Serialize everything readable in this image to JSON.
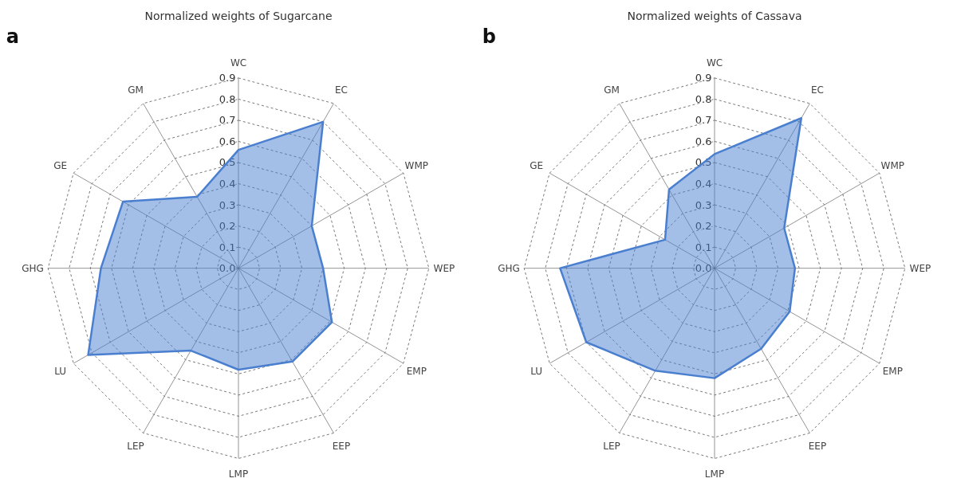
{
  "chart_data": [
    {
      "type": "radar",
      "title": "Normalized weights of Sugarcane",
      "annotations": [
        "a"
      ],
      "categories": [
        "WC",
        "EC",
        "WMP",
        "WEP",
        "EMP",
        "EEP",
        "LMP",
        "LEP",
        "LU",
        "GHG",
        "GE",
        "GM"
      ],
      "series": [
        {
          "color": "#4a7fcf",
          "values": [
            0.56,
            0.8,
            0.4,
            0.4,
            0.51,
            0.51,
            0.48,
            0.45,
            0.82,
            0.65,
            0.63,
            0.39
          ]
        }
      ],
      "ylim": [
        0,
        0.9
      ],
      "yticks": [
        {
          "value": 0,
          "label": "0.0"
        },
        {
          "value": 0.1,
          "label": "0.1"
        },
        {
          "value": 0.2,
          "label": "0.2"
        },
        {
          "value": 0.3,
          "label": "0.3"
        },
        {
          "value": 0.4,
          "label": "0.4"
        },
        {
          "value": 0.5,
          "label": "0.5"
        },
        {
          "value": 0.6,
          "label": "0.6"
        },
        {
          "value": 0.7,
          "label": "0.7"
        },
        {
          "value": 0.8,
          "label": "0.8"
        },
        {
          "value": 0.9,
          "label": "0.9"
        }
      ],
      "grid": true
    },
    {
      "type": "radar",
      "title": "Normalized weights of Cassava",
      "annotations": [
        "b"
      ],
      "categories": [
        "WC",
        "EC",
        "WMP",
        "WEP",
        "EMP",
        "EEP",
        "LMP",
        "LEP",
        "LU",
        "GHG",
        "GE",
        "GM"
      ],
      "series": [
        {
          "color": "#4a7fcf",
          "values": [
            0.54,
            0.82,
            0.38,
            0.38,
            0.41,
            0.44,
            0.52,
            0.56,
            0.7,
            0.73,
            0.27,
            0.43
          ]
        }
      ],
      "ylim": [
        0,
        0.9
      ],
      "yticks": [
        {
          "value": 0,
          "label": "0.0"
        },
        {
          "value": 0.1,
          "label": "0.1"
        },
        {
          "value": 0.2,
          "label": "0.2"
        },
        {
          "value": 0.3,
          "label": "0.3"
        },
        {
          "value": 0.4,
          "label": "0.4"
        },
        {
          "value": 0.5,
          "label": "0.5"
        },
        {
          "value": 0.6,
          "label": "0.6"
        },
        {
          "value": 0.7,
          "label": "0.7"
        },
        {
          "value": 0.8,
          "label": "0.8"
        },
        {
          "value": 0.9,
          "label": "0.9"
        }
      ],
      "grid": true
    }
  ]
}
